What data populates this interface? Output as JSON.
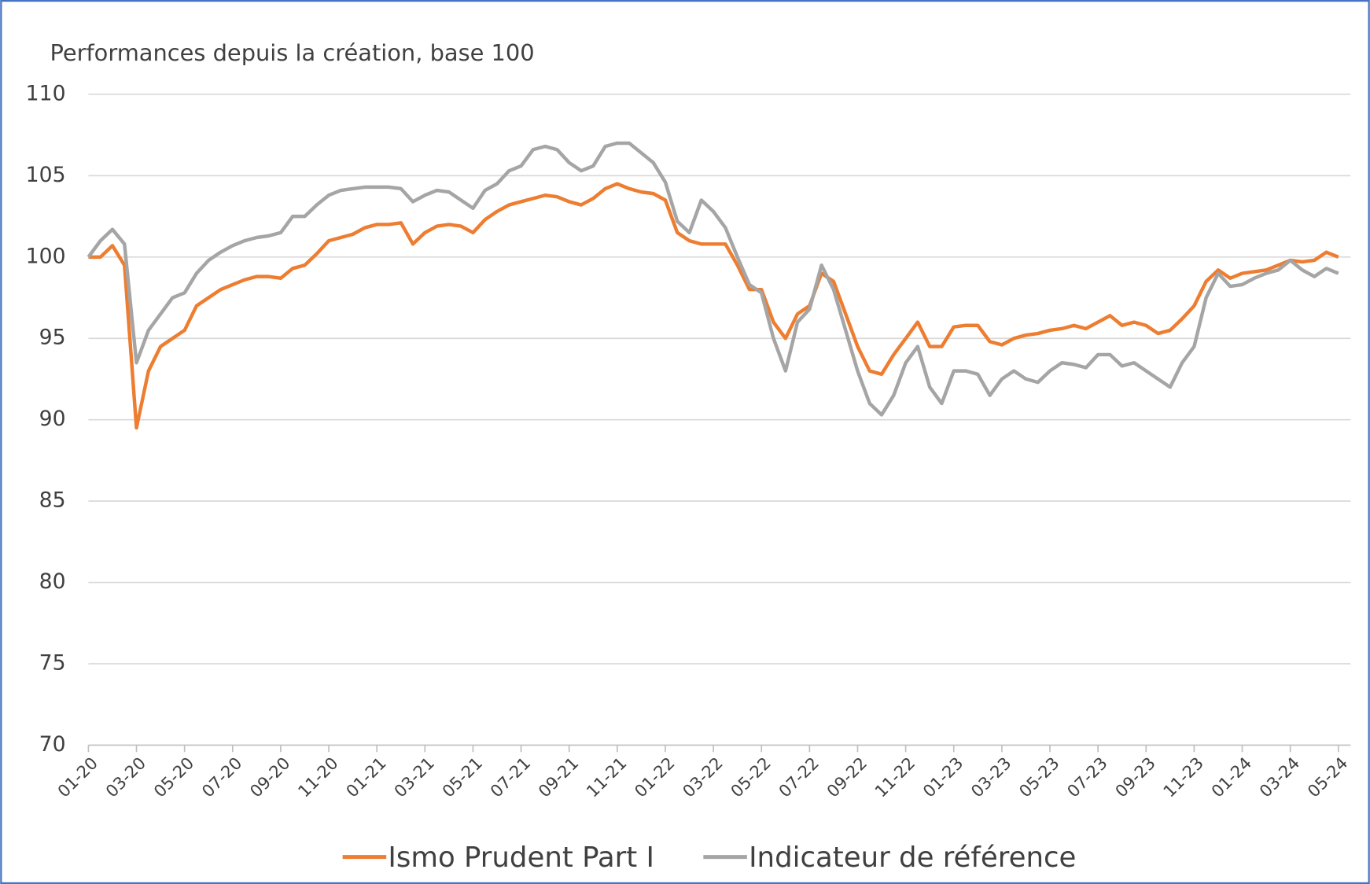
{
  "chart_data": {
    "type": "line",
    "title": "Performances depuis la création, base 100",
    "categories": [
      "01-20",
      null,
      null,
      null,
      "03-20",
      null,
      null,
      null,
      "05-20",
      null,
      null,
      null,
      "07-20",
      null,
      null,
      null,
      "09-20",
      null,
      null,
      null,
      "11-20",
      null,
      null,
      null,
      "01-21",
      null,
      null,
      null,
      "03-21",
      null,
      null,
      null,
      "05-21",
      null,
      null,
      null,
      "07-21",
      null,
      null,
      null,
      "09-21",
      null,
      null,
      null,
      "11-21",
      null,
      null,
      null,
      "01-22",
      null,
      null,
      null,
      "03-22",
      null,
      null,
      null,
      "05-22",
      null,
      null,
      null,
      "07-22",
      null,
      null,
      null,
      "09-22",
      null,
      null,
      null,
      "11-22",
      null,
      null,
      null,
      "01-23",
      null,
      null,
      null,
      "03-23",
      null,
      null,
      null,
      "05-23",
      null,
      null,
      null,
      "07-23",
      null,
      null,
      null,
      "09-23",
      null,
      null,
      null,
      "11-23",
      null,
      null,
      null,
      "01-24",
      null,
      null,
      null,
      "03-24",
      null,
      null,
      null,
      "05-24"
    ],
    "series": [
      {
        "name": "Ismo Prudent Part I",
        "color": "#ed7d31",
        "values": [
          100,
          100,
          100.7,
          99.5,
          89.5,
          93,
          94.5,
          95,
          95.5,
          97,
          97.5,
          98,
          98.3,
          98.6,
          98.8,
          98.8,
          98.7,
          99.3,
          99.5,
          100.2,
          101,
          101.2,
          101.4,
          101.8,
          102,
          102,
          102.1,
          100.8,
          101.5,
          101.9,
          102,
          101.9,
          101.5,
          102.3,
          102.8,
          103.2,
          103.4,
          103.6,
          103.8,
          103.7,
          103.4,
          103.2,
          103.6,
          104.2,
          104.5,
          104.2,
          104,
          103.9,
          103.5,
          101.5,
          101,
          100.8,
          100.8,
          100.8,
          99.5,
          98,
          98,
          96,
          95,
          96.5,
          97,
          99,
          98.5,
          96.5,
          94.5,
          93,
          92.8,
          94,
          95,
          96,
          94.5,
          94.5,
          95.7,
          95.8,
          95.8,
          94.8,
          94.6,
          95,
          95.2,
          95.3,
          95.5,
          95.6,
          95.8,
          95.6,
          96,
          96.4,
          95.8,
          96,
          95.8,
          95.3,
          95.5,
          96.2,
          97,
          98.5,
          99.2,
          98.7,
          99,
          99.1,
          99.2,
          99.5,
          99.8,
          99.7,
          99.8,
          100.3,
          100
        ]
      },
      {
        "name": "Indicateur de référence",
        "color": "#a5a5a5",
        "values": [
          100,
          101,
          101.7,
          100.8,
          93.5,
          95.5,
          96.5,
          97.5,
          97.8,
          99,
          99.8,
          100.3,
          100.7,
          101,
          101.2,
          101.3,
          101.5,
          102.5,
          102.5,
          103.2,
          103.8,
          104.1,
          104.2,
          104.3,
          104.3,
          104.3,
          104.2,
          103.4,
          103.8,
          104.1,
          104,
          103.5,
          103,
          104.1,
          104.5,
          105.3,
          105.6,
          106.6,
          106.8,
          106.6,
          105.8,
          105.3,
          105.6,
          106.8,
          107,
          107,
          106.4,
          105.8,
          104.6,
          102.2,
          101.5,
          103.5,
          102.8,
          101.8,
          100,
          98.3,
          97.8,
          95,
          93,
          96,
          96.8,
          99.5,
          98,
          95.5,
          93,
          91,
          90.3,
          91.5,
          93.5,
          94.5,
          92,
          91,
          93,
          93,
          92.8,
          91.5,
          92.5,
          93,
          92.5,
          92.3,
          93,
          93.5,
          93.4,
          93.2,
          94,
          94,
          93.3,
          93.5,
          93,
          92.5,
          92,
          93.5,
          94.5,
          97.5,
          99,
          98.2,
          98.3,
          98.7,
          99,
          99.2,
          99.8,
          99.2,
          98.8,
          99.3,
          99
        ]
      }
    ],
    "ylim": [
      70,
      110
    ],
    "yticks": [
      70,
      75,
      80,
      85,
      90,
      95,
      100,
      105,
      110
    ],
    "grid": true
  }
}
